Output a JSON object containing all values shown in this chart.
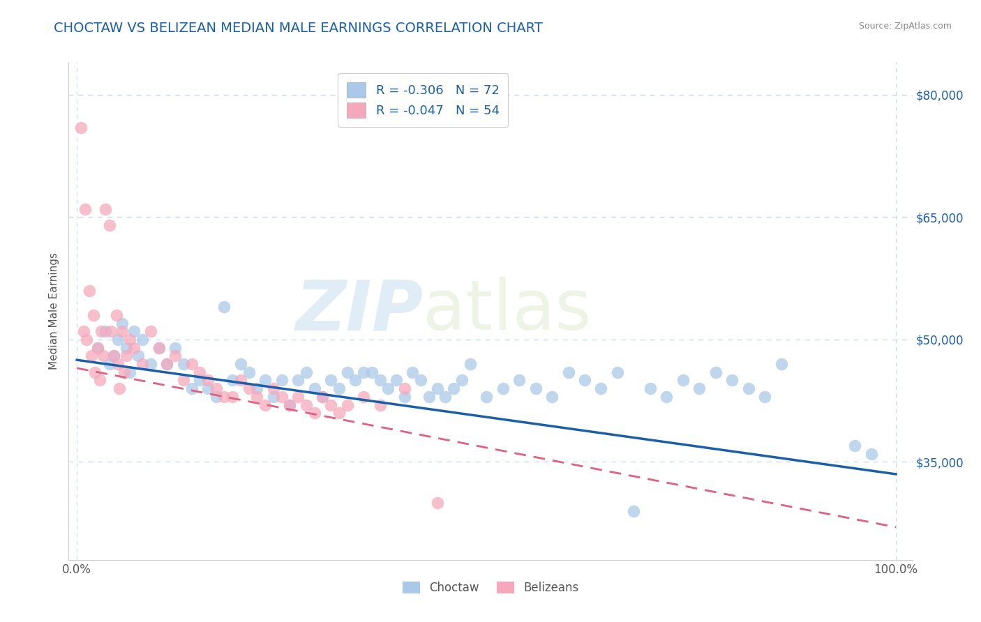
{
  "title": "CHOCTAW VS BELIZEAN MEDIAN MALE EARNINGS CORRELATION CHART",
  "source": "Source: ZipAtlas.com",
  "ylabel": "Median Male Earnings",
  "xlim": [
    -0.01,
    1.02
  ],
  "ylim": [
    23000,
    84000
  ],
  "x_ticks": [
    0.0,
    1.0
  ],
  "x_tick_labels": [
    "0.0%",
    "100.0%"
  ],
  "y_ticks": [
    35000,
    50000,
    65000,
    80000
  ],
  "y_tick_labels": [
    "$35,000",
    "$50,000",
    "$65,000",
    "$80,000"
  ],
  "choctaw_color": "#aac9e8",
  "belizean_color": "#f5a8bc",
  "choctaw_line_color": "#1a5fa8",
  "belizean_line_color": "#e06080",
  "r_choctaw": -0.306,
  "n_choctaw": 72,
  "r_belizean": -0.047,
  "n_belizean": 54,
  "legend_label_choctaw": "Choctaw",
  "legend_label_belizean": "Belizeans",
  "watermark_zip": "ZIP",
  "watermark_atlas": "atlas",
  "background_color": "#ffffff",
  "grid_color": "#c8d8ec",
  "choctaw_x": [
    0.025,
    0.035,
    0.04,
    0.045,
    0.05,
    0.055,
    0.06,
    0.065,
    0.07,
    0.075,
    0.08,
    0.09,
    0.1,
    0.11,
    0.12,
    0.13,
    0.14,
    0.15,
    0.16,
    0.17,
    0.18,
    0.19,
    0.2,
    0.21,
    0.22,
    0.23,
    0.24,
    0.25,
    0.26,
    0.27,
    0.28,
    0.29,
    0.3,
    0.31,
    0.32,
    0.33,
    0.34,
    0.35,
    0.36,
    0.37,
    0.38,
    0.39,
    0.4,
    0.41,
    0.42,
    0.43,
    0.44,
    0.45,
    0.46,
    0.47,
    0.48,
    0.5,
    0.52,
    0.54,
    0.56,
    0.58,
    0.6,
    0.62,
    0.64,
    0.66,
    0.68,
    0.7,
    0.72,
    0.74,
    0.76,
    0.78,
    0.8,
    0.82,
    0.84,
    0.86,
    0.95,
    0.97
  ],
  "choctaw_y": [
    49000,
    51000,
    47000,
    48000,
    50000,
    52000,
    49000,
    46000,
    51000,
    48000,
    50000,
    47000,
    49000,
    47000,
    49000,
    47000,
    44000,
    45000,
    44000,
    43000,
    54000,
    45000,
    47000,
    46000,
    44000,
    45000,
    43000,
    45000,
    42000,
    45000,
    46000,
    44000,
    43000,
    45000,
    44000,
    46000,
    45000,
    46000,
    46000,
    45000,
    44000,
    45000,
    43000,
    46000,
    45000,
    43000,
    44000,
    43000,
    44000,
    45000,
    47000,
    43000,
    44000,
    45000,
    44000,
    43000,
    46000,
    45000,
    44000,
    46000,
    29000,
    44000,
    43000,
    45000,
    44000,
    46000,
    45000,
    44000,
    43000,
    47000,
    37000,
    36000
  ],
  "belizean_x": [
    0.005,
    0.008,
    0.01,
    0.012,
    0.015,
    0.018,
    0.02,
    0.022,
    0.025,
    0.028,
    0.03,
    0.032,
    0.035,
    0.04,
    0.042,
    0.045,
    0.048,
    0.05,
    0.052,
    0.055,
    0.058,
    0.06,
    0.065,
    0.07,
    0.08,
    0.09,
    0.1,
    0.11,
    0.12,
    0.13,
    0.14,
    0.15,
    0.16,
    0.17,
    0.18,
    0.19,
    0.2,
    0.21,
    0.22,
    0.23,
    0.24,
    0.25,
    0.26,
    0.27,
    0.28,
    0.29,
    0.3,
    0.31,
    0.32,
    0.33,
    0.35,
    0.37,
    0.4,
    0.44
  ],
  "belizean_y": [
    76000,
    51000,
    66000,
    50000,
    56000,
    48000,
    53000,
    46000,
    49000,
    45000,
    51000,
    48000,
    66000,
    64000,
    51000,
    48000,
    53000,
    47000,
    44000,
    51000,
    46000,
    48000,
    50000,
    49000,
    47000,
    51000,
    49000,
    47000,
    48000,
    45000,
    47000,
    46000,
    45000,
    44000,
    43000,
    43000,
    45000,
    44000,
    43000,
    42000,
    44000,
    43000,
    42000,
    43000,
    42000,
    41000,
    43000,
    42000,
    41000,
    42000,
    43000,
    42000,
    44000,
    30000
  ],
  "choctaw_trend_x0": 0.0,
  "choctaw_trend_x1": 1.0,
  "choctaw_trend_y0": 47500,
  "choctaw_trend_y1": 33500,
  "belizean_trend_x0": 0.0,
  "belizean_trend_x1": 1.0,
  "belizean_trend_y0": 46500,
  "belizean_trend_y1": 27000
}
